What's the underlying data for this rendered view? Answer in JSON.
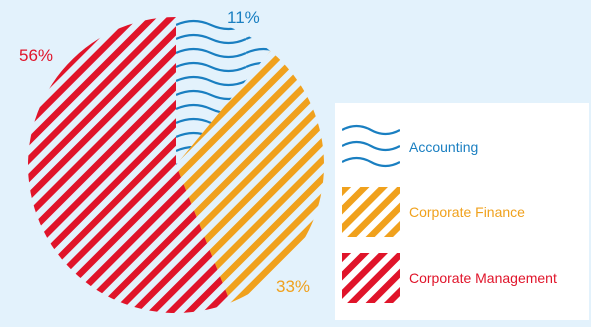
{
  "chart_data": {
    "type": "pie",
    "legend_position": "right",
    "slices": [
      {
        "name": "Accounting",
        "value": 11,
        "label": "11%",
        "color": "#1a7fc1",
        "pattern": "wavy"
      },
      {
        "name": "Corporate Finance",
        "value": 33,
        "label": "33%",
        "color": "#f0a11d",
        "pattern": "diagonal-stripes"
      },
      {
        "name": "Corporate Management",
        "value": 56,
        "label": "56%",
        "color": "#e0142a",
        "pattern": "diagonal-stripes"
      }
    ]
  },
  "legend": {
    "items": [
      {
        "label": "Accounting",
        "color": "#1a7fc1",
        "pattern": "wavy"
      },
      {
        "label": "Corporate Finance",
        "color": "#f0a11d",
        "pattern": "diagonal-stripes"
      },
      {
        "label": "Corporate Management",
        "color": "#e0142a",
        "pattern": "diagonal-stripes"
      }
    ]
  },
  "colors": {
    "background": "#e3f2fc",
    "legend_background": "#ffffff"
  }
}
